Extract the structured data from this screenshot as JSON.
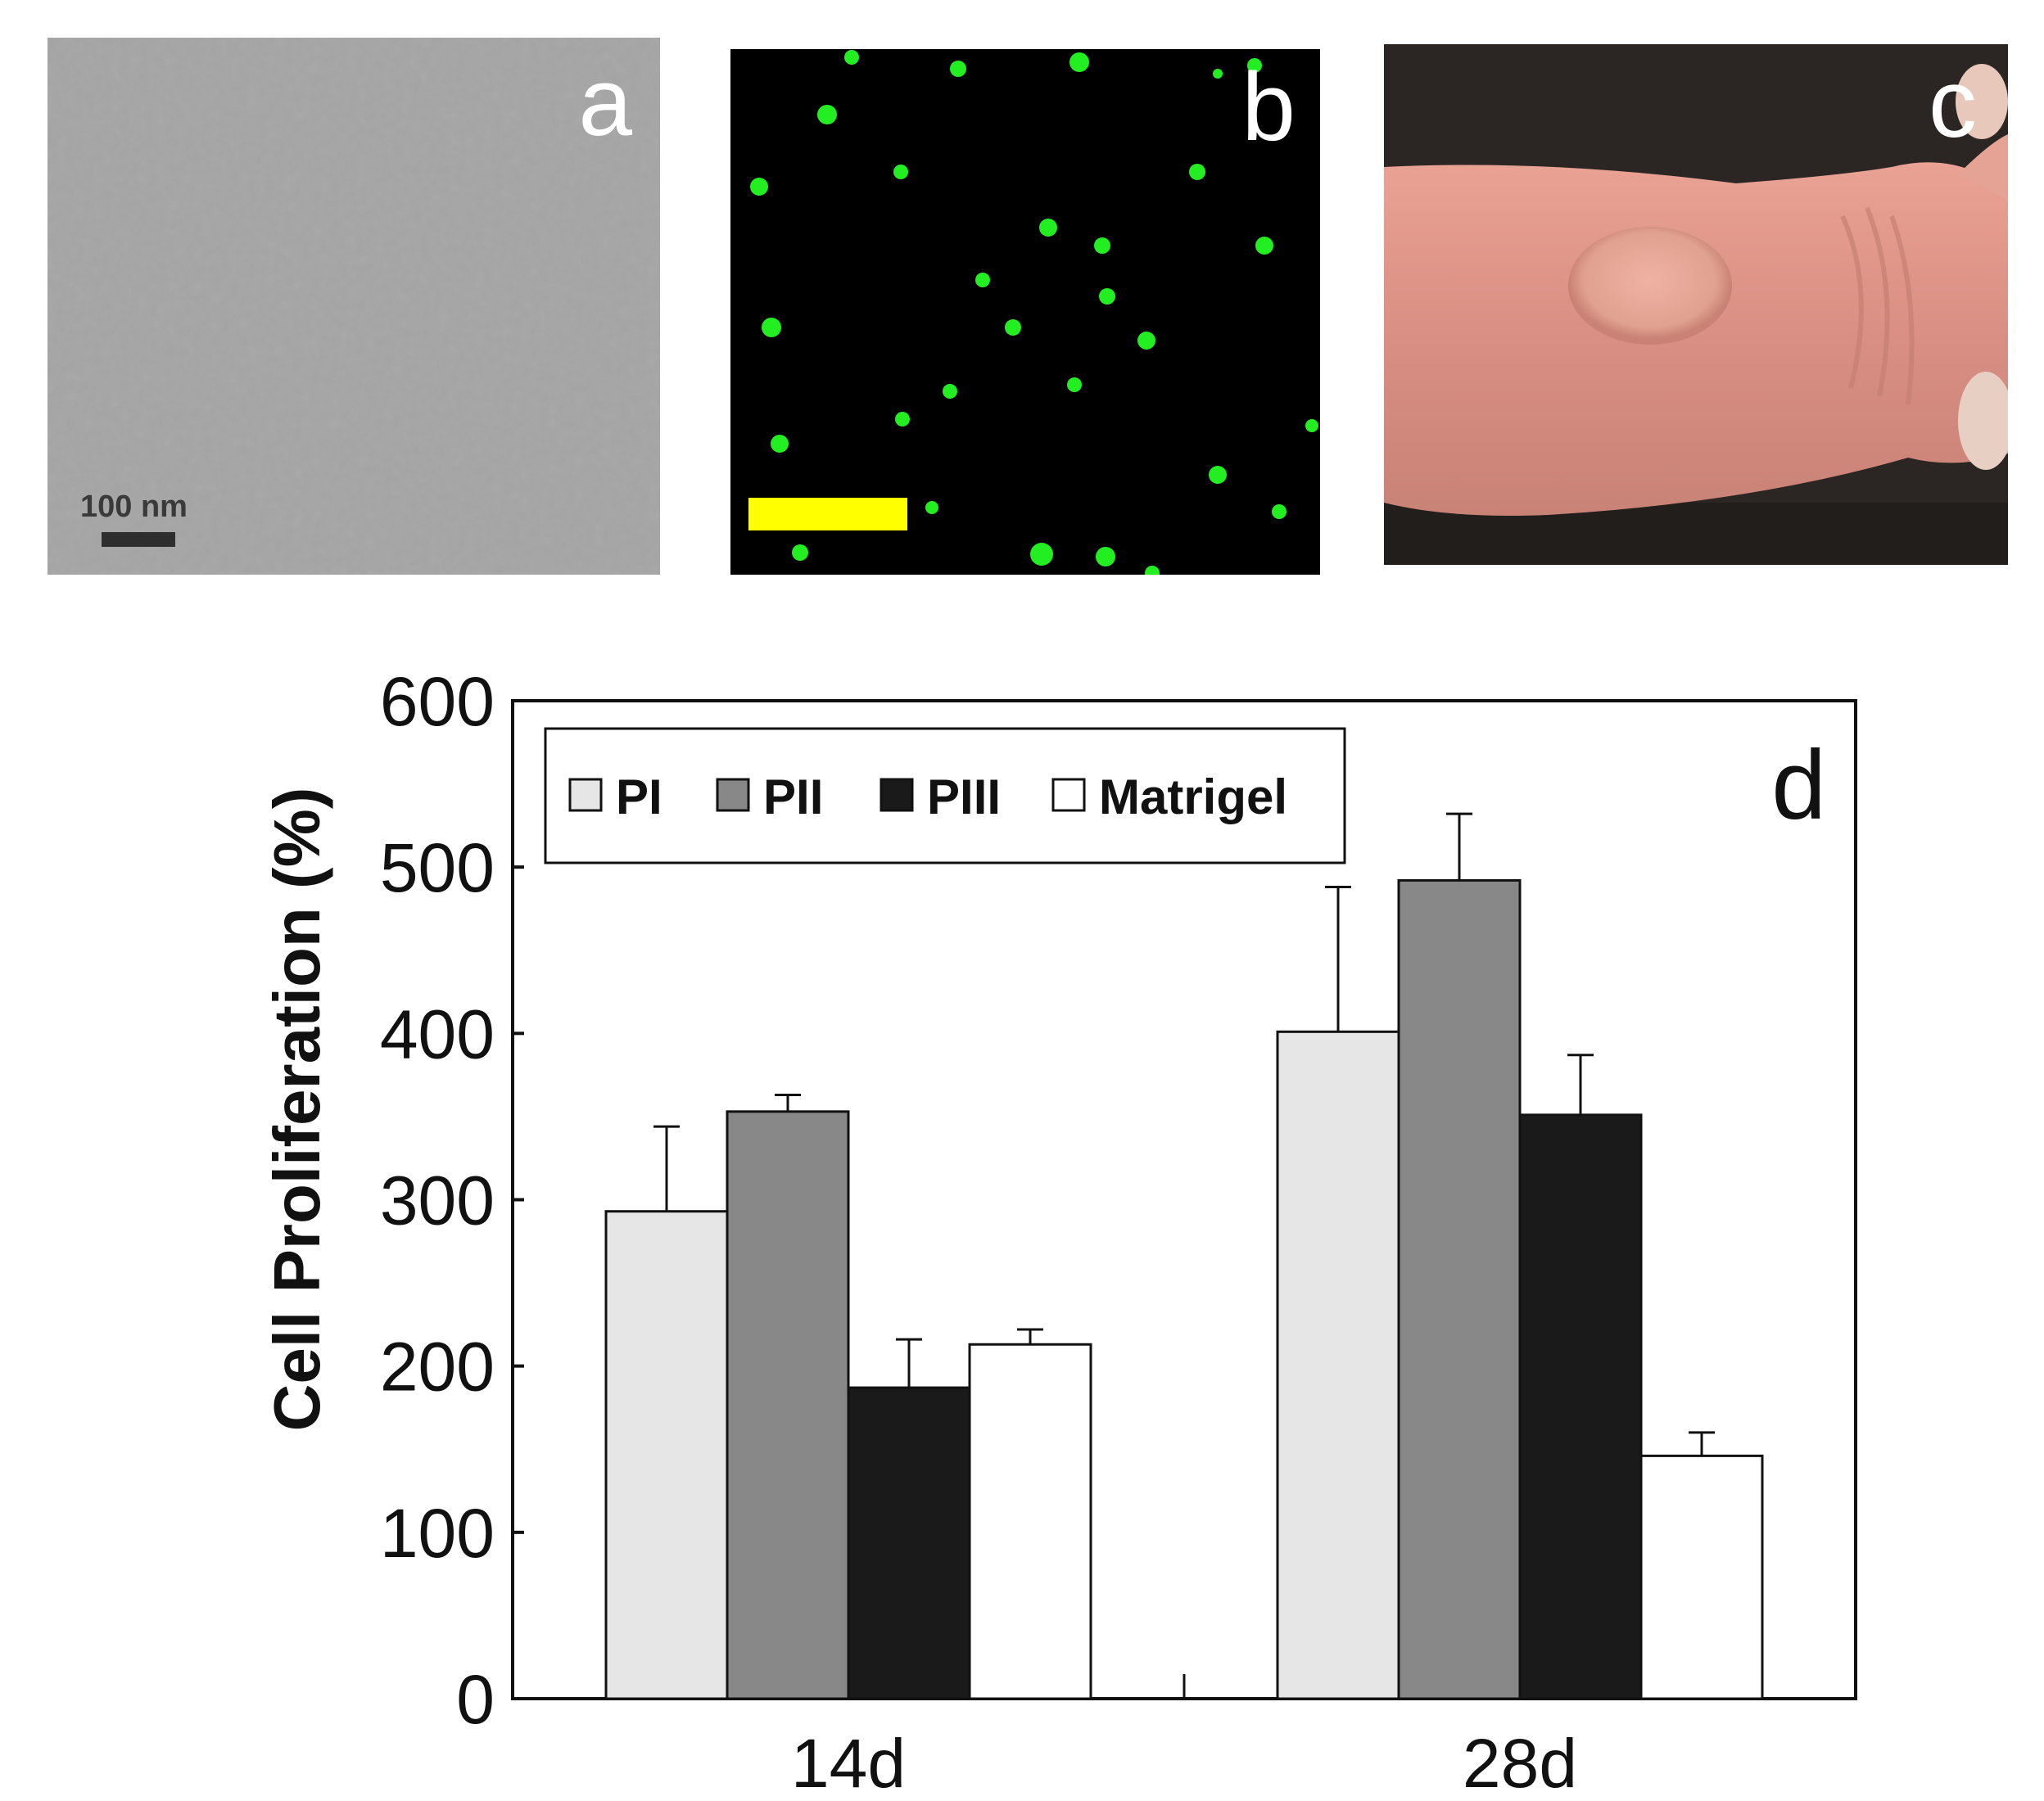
{
  "panels": {
    "a": {
      "letter": "a",
      "scale_label": "100 nm"
    },
    "b": {
      "letter": "b"
    },
    "c": {
      "letter": "c"
    },
    "d": {
      "letter": "d"
    }
  },
  "colors": {
    "PI": "#e6e6e6",
    "PII": "#888888",
    "PIII": "#1a1a1a",
    "Matrigel": "#ffffff",
    "scale_bar_b": "#ffff00",
    "cells_b": "#22ee22"
  },
  "chart_data": {
    "type": "bar",
    "panel_label": "d",
    "categories": [
      "14d",
      "28d"
    ],
    "ylabel": "Cell Proliferation (%)",
    "xlabel": "",
    "ylim": [
      0,
      600
    ],
    "yticks": [
      0,
      100,
      200,
      300,
      400,
      500,
      600
    ],
    "grid": false,
    "legend_position": "top-left",
    "series": [
      {
        "name": "PI",
        "values": [
          293,
          401
        ],
        "errors": [
          51,
          87
        ]
      },
      {
        "name": "PII",
        "values": [
          353,
          492
        ],
        "errors": [
          10,
          40
        ]
      },
      {
        "name": "PIII",
        "values": [
          187,
          351
        ],
        "errors": [
          29,
          36
        ]
      },
      {
        "name": "Matrigel",
        "values": [
          213,
          146
        ],
        "errors": [
          9,
          14
        ]
      }
    ]
  }
}
